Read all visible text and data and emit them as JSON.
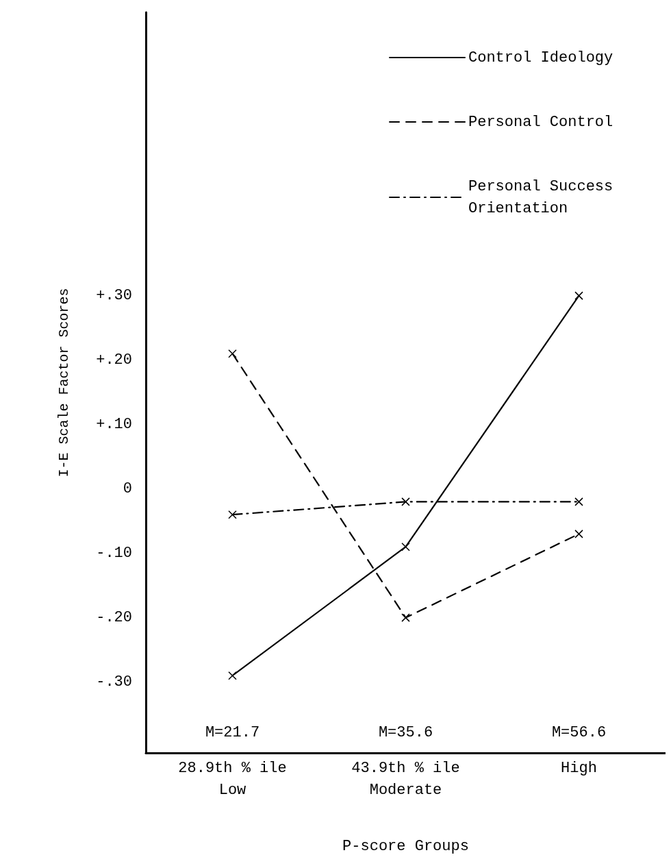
{
  "chart_data": {
    "type": "line",
    "xlabel": "P-score Groups",
    "ylabel": "I-E Scale Factor Scores",
    "categories": [
      "28.9th % ile\nLow",
      "43.9th % ile\nModerate",
      "High"
    ],
    "series": [
      {
        "name": "Control Ideology",
        "color": "#000000",
        "line_style": "solid",
        "values": [
          -0.29,
          -0.09,
          0.3
        ]
      },
      {
        "name": "Personal Control",
        "color": "#000000",
        "line_style": "dashed",
        "values": [
          0.21,
          -0.2,
          -0.07
        ]
      },
      {
        "name": "Personal Success Orientation",
        "color": "#000000",
        "line_style": "dashdot",
        "values": [
          -0.04,
          -0.02,
          -0.02
        ]
      }
    ],
    "ylim": [
      -0.41,
      0.74
    ],
    "yticks": [
      {
        "value": -0.3,
        "label": "-.30"
      },
      {
        "value": -0.2,
        "label": "-.20"
      },
      {
        "value": -0.1,
        "label": "-.10"
      },
      {
        "value": 0,
        "label": "0"
      },
      {
        "value": 0.1,
        "label": "+.10"
      },
      {
        "value": 0.2,
        "label": "+.20"
      },
      {
        "value": 0.3,
        "label": "+.30"
      }
    ],
    "annotations": [
      "M=21.7",
      "M=35.6",
      "M=56.6"
    ],
    "marker": "cross",
    "grid": false,
    "legend": "top right"
  }
}
